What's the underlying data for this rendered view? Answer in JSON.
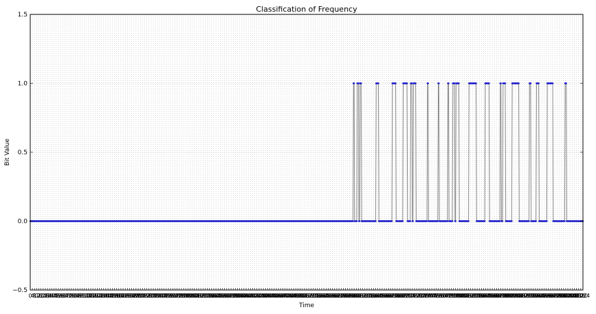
{
  "chart_data": {
    "type": "line",
    "title": "Classification of Frequency",
    "xlabel": "Time",
    "ylabel": "Bit Value",
    "xlim": [
      0,
      1024
    ],
    "ylim": [
      -0.5,
      1.5
    ],
    "y_ticks": [
      -0.5,
      0.0,
      0.5,
      1.0,
      1.5
    ],
    "y_tick_labels": [
      "−0.5",
      "0.0",
      "0.5",
      "1.0",
      "1.5"
    ],
    "x_tick_step": 4,
    "grid": true,
    "line_color": "#888888",
    "marker_color": "#1f1fcc",
    "series": [
      {
        "segments": [
          [
            0,
            598,
            0
          ],
          [
            599,
            600,
            1
          ],
          [
            601,
            605,
            0
          ],
          [
            606,
            608,
            1
          ],
          [
            609,
            610,
            0
          ],
          [
            611,
            613,
            1
          ],
          [
            614,
            640,
            0
          ],
          [
            641,
            645,
            1
          ],
          [
            646,
            670,
            0
          ],
          [
            671,
            677,
            1
          ],
          [
            678,
            690,
            0
          ],
          [
            691,
            698,
            1
          ],
          [
            699,
            704,
            0
          ],
          [
            705,
            707,
            1
          ],
          [
            708,
            709,
            0
          ],
          [
            710,
            714,
            1
          ],
          [
            715,
            735,
            0
          ],
          [
            736,
            737,
            1
          ],
          [
            738,
            755,
            0
          ],
          [
            756,
            757,
            1
          ],
          [
            758,
            773,
            0
          ],
          [
            774,
            775,
            1
          ],
          [
            776,
            782,
            0
          ],
          [
            783,
            786,
            1
          ],
          [
            787,
            788,
            0
          ],
          [
            789,
            794,
            1
          ],
          [
            795,
            812,
            0
          ],
          [
            813,
            826,
            1
          ],
          [
            827,
            842,
            0
          ],
          [
            843,
            850,
            1
          ],
          [
            851,
            870,
            0
          ],
          [
            871,
            872,
            1
          ],
          [
            873,
            875,
            0
          ],
          [
            876,
            880,
            1
          ],
          [
            881,
            892,
            0
          ],
          [
            893,
            905,
            1
          ],
          [
            906,
            924,
            0
          ],
          [
            925,
            927,
            1
          ],
          [
            928,
            937,
            0
          ],
          [
            938,
            942,
            1
          ],
          [
            943,
            957,
            0
          ],
          [
            958,
            968,
            1
          ],
          [
            969,
            990,
            0
          ],
          [
            991,
            993,
            1
          ],
          [
            994,
            1024,
            0
          ]
        ]
      }
    ]
  }
}
